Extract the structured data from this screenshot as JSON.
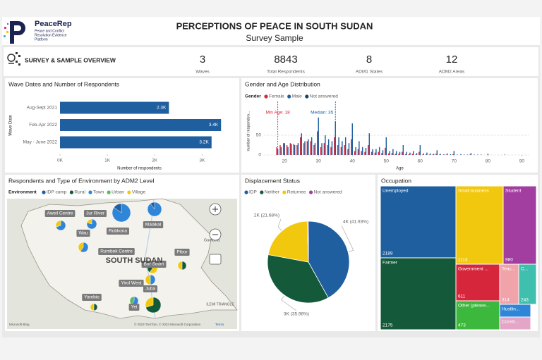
{
  "header": {
    "logo": "PeaceRep",
    "logo_tagline": [
      "Peace and Conflict",
      "Resolution Evidence",
      "Platform"
    ],
    "title": "PERCEPTIONS OF PEACE IN SOUTH SUDAN",
    "subtitle": "Survey Sample"
  },
  "overview": {
    "title": "SURVEY & SAMPLE OVERVIEW",
    "kpis": [
      {
        "value": 3,
        "label": "Waves"
      },
      {
        "value": 8843,
        "label": "Total Respondents"
      },
      {
        "value": 8,
        "label": "ADM1 States"
      },
      {
        "value": 12,
        "label": "ADM2 Areas"
      }
    ]
  },
  "chart_data": [
    {
      "type": "hbar",
      "title": "Wave Dates and Number of Respondents",
      "categories": [
        "Aug-Sept 2021",
        "Feb-Apr 2022",
        "May - June 2022"
      ],
      "values": [
        2300,
        3400,
        3200
      ],
      "value_labels": [
        "2.3K",
        "3.4K",
        "3.2K"
      ],
      "color": "#1f5fa0",
      "xlim": [
        0,
        3650
      ],
      "xticks": [
        {
          "value": 0,
          "label": "0K"
        },
        {
          "value": 1000,
          "label": "1K"
        },
        {
          "value": 2000,
          "label": "2K"
        },
        {
          "value": 3000,
          "label": "3K"
        }
      ],
      "xlabel": "Number of respondents",
      "ylabel": "Wave Date"
    },
    {
      "type": "grouped_column",
      "title": "Gender and Age Distribution",
      "legend_title": "Gender",
      "x": [
        18,
        19,
        20,
        21,
        22,
        23,
        24,
        25,
        26,
        27,
        28,
        29,
        30,
        31,
        32,
        33,
        34,
        35,
        36,
        37,
        38,
        39,
        40,
        41,
        42,
        43,
        44,
        45,
        46,
        47,
        48,
        49,
        50,
        51,
        52,
        53,
        54,
        55,
        56,
        57,
        58,
        59,
        60,
        61,
        62,
        63,
        64,
        65,
        66,
        67,
        68,
        69,
        70,
        71,
        72,
        73,
        74,
        75,
        76,
        77,
        78,
        79,
        80,
        81,
        82,
        83,
        84,
        85
      ],
      "series": [
        {
          "name": "Female",
          "color": "#d6263b",
          "values": [
            20,
            25,
            30,
            25,
            30,
            28,
            25,
            45,
            30,
            35,
            35,
            25,
            60,
            20,
            30,
            25,
            20,
            45,
            25,
            20,
            25,
            15,
            40,
            10,
            15,
            10,
            8,
            25,
            8,
            6,
            8,
            5,
            18,
            4,
            5,
            3,
            3,
            8,
            2,
            2,
            3,
            1,
            8,
            1,
            1,
            1,
            1,
            3,
            1,
            0,
            1,
            0,
            2,
            0,
            0,
            0,
            0,
            1,
            0,
            0,
            0,
            0,
            0,
            0,
            0,
            0,
            0,
            0
          ]
        },
        {
          "name": "Male",
          "color": "#1f5fa0",
          "values": [
            15,
            20,
            30,
            20,
            28,
            25,
            30,
            55,
            35,
            40,
            45,
            30,
            95,
            30,
            50,
            40,
            35,
            85,
            45,
            35,
            45,
            30,
            80,
            20,
            35,
            20,
            18,
            55,
            15,
            15,
            20,
            12,
            45,
            10,
            15,
            10,
            8,
            25,
            8,
            6,
            10,
            5,
            25,
            4,
            6,
            4,
            3,
            12,
            3,
            2,
            4,
            2,
            10,
            1,
            2,
            1,
            1,
            5,
            1,
            1,
            1,
            0,
            3,
            0,
            0,
            0,
            0,
            1
          ]
        },
        {
          "name": "Not answered",
          "color": "#12436d",
          "values": [
            0,
            0,
            0,
            0,
            0,
            0,
            0,
            0,
            0,
            0,
            0,
            0,
            0,
            0,
            0,
            0,
            0,
            0,
            0,
            0,
            0,
            0,
            0,
            0,
            0,
            0,
            0,
            0,
            0,
            0,
            0,
            0,
            0,
            0,
            0,
            0,
            0,
            0,
            0,
            0,
            0,
            0,
            0,
            0,
            0,
            0,
            0,
            0,
            0,
            0,
            0,
            0,
            0,
            0,
            0,
            0,
            0,
            0,
            0,
            0,
            0,
            0,
            0,
            0,
            0,
            0,
            0,
            0
          ]
        }
      ],
      "xlim": [
        16,
        92
      ],
      "ylim": [
        0,
        125
      ],
      "xticks": [
        20,
        30,
        40,
        50,
        60,
        70,
        80,
        90
      ],
      "yticks": [
        0,
        50
      ],
      "xlabel": "Age",
      "ylabel": "number of responden...",
      "annotations": [
        {
          "label": "Min Age: 18",
          "x": 18,
          "color": "#d6263b"
        },
        {
          "label": "Median: 35",
          "x": 35,
          "color": "#1f5fa0"
        }
      ]
    },
    {
      "type": "map",
      "title": "Respondents and Type of Environment by ADM2 Level",
      "legend_title": "Environment",
      "legend": [
        {
          "name": "IDP camp",
          "color": "#1f5fa0"
        },
        {
          "name": "Rural",
          "color": "#14593a"
        },
        {
          "name": "Town",
          "color": "#2f86d8"
        },
        {
          "name": "Urban",
          "color": "#5cb85c"
        },
        {
          "name": "Village",
          "color": "#f2c80f"
        }
      ],
      "place_labels": [
        "Aweil Centre",
        "Jur River",
        "Wau",
        "Rubkona",
        "Malakal",
        "Rumbek Centre",
        "Pibor",
        "Bor South",
        "Yirol West",
        "Juba",
        "Yambio",
        "Yei"
      ],
      "region_labels": [
        "SOUTH SUDAN",
        "Gambela",
        "ILEMI TRIANGLE"
      ],
      "attribution": [
        "Microsoft Bing",
        "© 2023 TomTom, © 2023 Microsoft Corporation",
        "Terms"
      ]
    },
    {
      "type": "pie",
      "title": "Displacement Status",
      "categories": [
        "IDP",
        "Neither",
        "Returnee",
        "Not answered"
      ],
      "values": [
        3708,
        3182,
        1917,
        36
      ],
      "value_labels": [
        "4K (41.93%)",
        "3K (35.98%)",
        "2K (21.68%)",
        null
      ],
      "colors": [
        "#1f5fa0",
        "#14593a",
        "#f2c80f",
        "#a23ea0"
      ]
    },
    {
      "type": "treemap",
      "title": "Occupation",
      "categories": [
        "Unemployed",
        "Farmer",
        "Small business",
        "Student",
        "Government ...",
        "Teac...",
        "C...",
        "Other (please...",
        "Hustlin...",
        "Constr..."
      ],
      "values": [
        2189,
        2175,
        1113,
        980,
        611,
        314,
        243,
        473,
        230,
        160
      ],
      "value_labels": [
        "2189",
        "2175",
        "1113",
        "980",
        "611",
        "314",
        "243",
        "473",
        null,
        null
      ],
      "colors": [
        "#1f5fa0",
        "#14593a",
        "#f2c80f",
        "#a23ea0",
        "#d6263b",
        "#f0a3a9",
        "#3fbfad",
        "#3cb83c",
        "#2f86d8",
        "#e4a6c6"
      ]
    }
  ]
}
